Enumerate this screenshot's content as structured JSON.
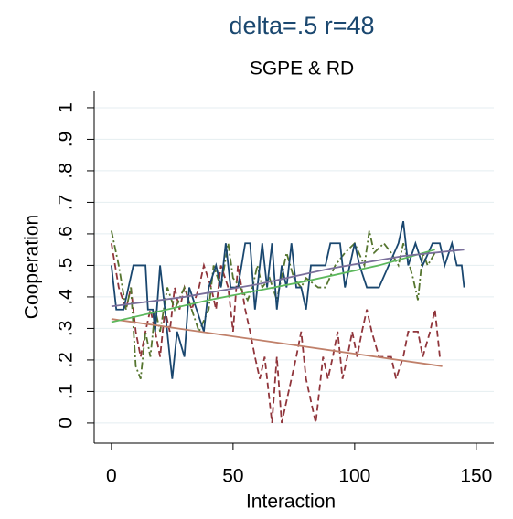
{
  "chart_data": {
    "type": "line",
    "title": "delta=.5 r=48",
    "subtitle": "SGPE & RD",
    "x_label": "Interaction",
    "y_label": "Cooperation",
    "xlim": [
      -7.1,
      157.2
    ],
    "ylim": [
      -0.064,
      1.052
    ],
    "xticks": [
      0,
      50,
      100,
      150
    ],
    "yticks": [
      0,
      {
        "value": 0.1,
        "label": ".1"
      },
      {
        "value": 0.2,
        "label": ".2"
      },
      {
        "value": 0.3,
        "label": ".3"
      },
      {
        "value": 0.4,
        "label": ".4"
      },
      {
        "value": 0.5,
        "label": ".5"
      },
      {
        "value": 0.6,
        "label": ".6"
      },
      {
        "value": 0.7,
        "label": ".7"
      },
      {
        "value": 0.8,
        "label": ".8"
      },
      {
        "value": 0.9,
        "label": ".9"
      },
      1
    ],
    "grid": true,
    "series": [
      {
        "color": "#90353b",
        "style": "dash",
        "x": [
          0,
          3,
          6,
          8,
          10,
          12,
          14,
          16,
          18,
          20,
          22,
          24,
          26,
          28,
          30,
          33,
          36,
          38,
          41,
          43,
          45,
          48,
          50,
          52,
          55,
          57,
          59,
          61,
          63,
          65,
          66,
          68,
          70,
          72,
          74,
          76,
          78,
          80,
          82,
          84,
          85,
          87,
          89,
          91,
          93,
          95,
          97,
          99,
          101,
          103,
          105,
          107,
          110,
          115,
          117,
          120,
          122,
          126,
          128,
          131,
          133,
          135
        ],
        "values": [
          0.57,
          0.43,
          0.36,
          0.43,
          0.29,
          0.21,
          0.29,
          0.36,
          0.29,
          0.21,
          0.36,
          0.29,
          0.43,
          0.36,
          0.43,
          0.36,
          0.43,
          0.5,
          0.43,
          0.36,
          0.5,
          0.43,
          0.29,
          0.5,
          0.36,
          0.29,
          0.21,
          0.14,
          0.21,
          0.07,
          0,
          0.21,
          0,
          0.07,
          0.14,
          0.21,
          0.29,
          0.14,
          0.07,
          0,
          0.07,
          0.21,
          0.14,
          0.21,
          0.29,
          0.14,
          0.21,
          0.29,
          0.21,
          0.29,
          0.36,
          0.29,
          0.21,
          0.21,
          0.14,
          0.21,
          0.29,
          0.29,
          0.21,
          0.29,
          0.36,
          0.21
        ]
      },
      {
        "color": "#55752f",
        "style": "dashdot",
        "x": [
          0,
          3,
          6,
          8,
          10,
          12,
          14,
          16,
          18,
          20,
          23,
          26,
          30,
          33,
          36,
          40,
          42,
          45,
          48,
          50,
          53,
          56,
          58,
          60,
          62,
          65,
          68,
          72,
          75,
          78,
          80,
          85,
          88,
          92,
          96,
          100,
          104,
          106,
          108,
          112,
          115,
          118,
          120,
          124,
          126,
          128,
          130,
          133
        ],
        "values": [
          0.61,
          0.5,
          0.36,
          0.43,
          0.18,
          0.14,
          0.29,
          0.21,
          0.36,
          0.29,
          0.43,
          0.36,
          0.43,
          0.36,
          0.29,
          0.36,
          0.5,
          0.43,
          0.57,
          0.46,
          0.43,
          0.39,
          0.43,
          0.5,
          0.43,
          0.46,
          0.39,
          0.54,
          0.46,
          0.43,
          0.46,
          0.43,
          0.43,
          0.5,
          0.54,
          0.57,
          0.5,
          0.61,
          0.54,
          0.57,
          0.54,
          0.5,
          0.57,
          0.46,
          0.39,
          0.54,
          0.5,
          0.54
        ]
      },
      {
        "color": "#1a476f",
        "style": "solid",
        "x": [
          0,
          2,
          5,
          7,
          9,
          14,
          15,
          17,
          18,
          20,
          22,
          24,
          25,
          27,
          30,
          32,
          35,
          38,
          40,
          43,
          45,
          47,
          49,
          52,
          55,
          57,
          59,
          62,
          64,
          66,
          68,
          70,
          72,
          74,
          76,
          78,
          80,
          82,
          85,
          88,
          90,
          92,
          94,
          96,
          98,
          100,
          102,
          105,
          110,
          114,
          118,
          120,
          122,
          125,
          128,
          132,
          135,
          137,
          140,
          142,
          144,
          145
        ],
        "values": [
          0.5,
          0.36,
          0.36,
          0.43,
          0.5,
          0.5,
          0.36,
          0.36,
          0.29,
          0.5,
          0.36,
          0.21,
          0.14,
          0.29,
          0.21,
          0.43,
          0.36,
          0.29,
          0.43,
          0.5,
          0.43,
          0.57,
          0.43,
          0.43,
          0.57,
          0.57,
          0.36,
          0.57,
          0.43,
          0.57,
          0.36,
          0.5,
          0.43,
          0.57,
          0.43,
          0.43,
          0.36,
          0.5,
          0.5,
          0.5,
          0.57,
          0.57,
          0.57,
          0.43,
          0.5,
          0.57,
          0.5,
          0.43,
          0.43,
          0.5,
          0.57,
          0.64,
          0.5,
          0.57,
          0.5,
          0.57,
          0.57,
          0.5,
          0.57,
          0.5,
          0.5,
          0.43
        ]
      },
      {
        "color": "#c0806a",
        "style": "solid",
        "x": [
          0,
          136
        ],
        "values": [
          0.33,
          0.18
        ]
      },
      {
        "color": "#5cb85c",
        "style": "solid",
        "x": [
          0,
          40,
          80,
          110,
          133
        ],
        "values": [
          0.32,
          0.39,
          0.45,
          0.5,
          0.55
        ]
      },
      {
        "color": "#7a6f9b",
        "style": "solid",
        "x": [
          0,
          30,
          60,
          90,
          120,
          145
        ],
        "values": [
          0.37,
          0.4,
          0.44,
          0.49,
          0.53,
          0.55
        ]
      }
    ]
  }
}
